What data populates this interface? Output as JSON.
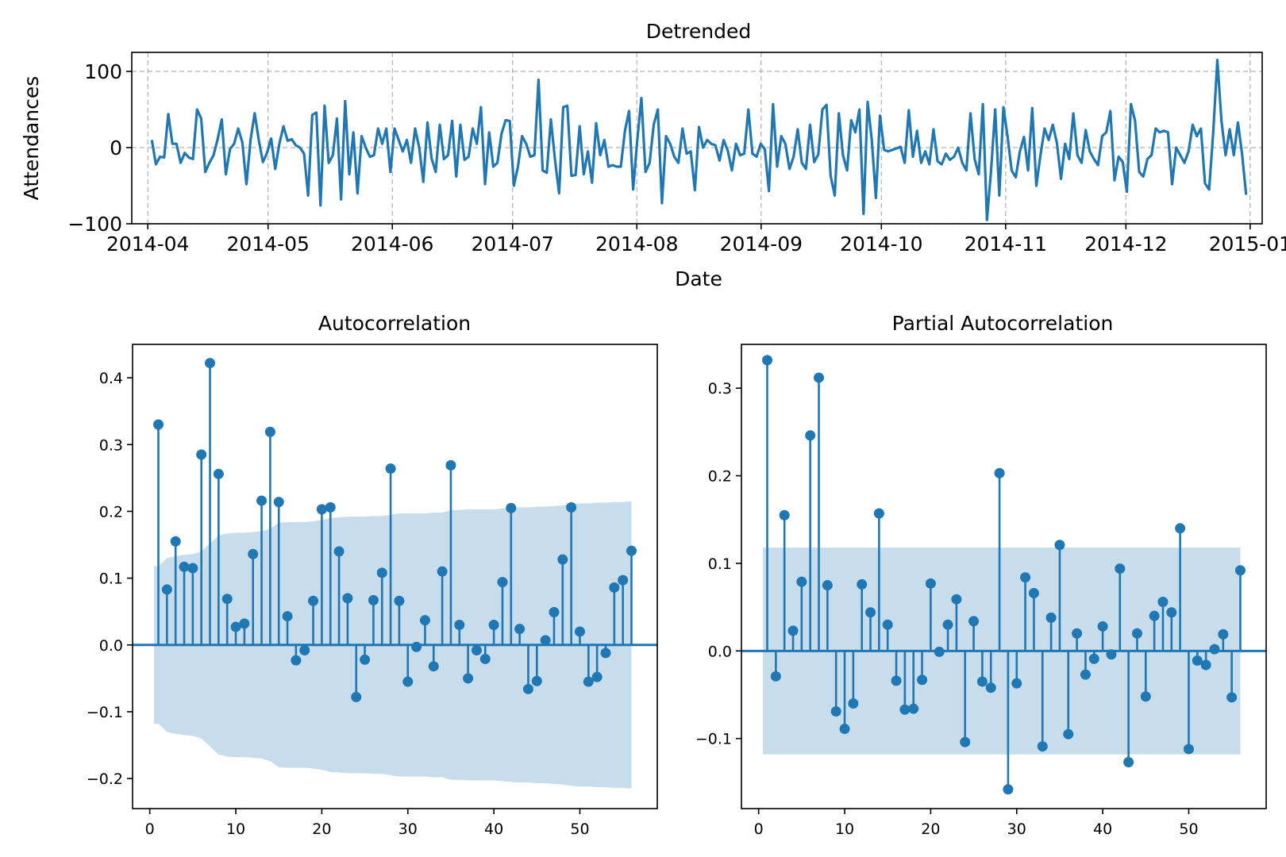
{
  "chart_data": [
    {
      "type": "line",
      "title": "Detrended",
      "xlabel": "Date",
      "ylabel": "Attendances",
      "xlim": [
        "2014-03-28",
        "2015-01-04"
      ],
      "ylim": [
        -100,
        125
      ],
      "yticks": [
        -100,
        0,
        100
      ],
      "ytick_labels": [
        "−100",
        "0",
        "100"
      ],
      "xticks": [
        "2014-04-01",
        "2014-05-01",
        "2014-06-01",
        "2014-07-01",
        "2014-08-01",
        "2014-09-01",
        "2014-10-01",
        "2014-11-01",
        "2014-12-01",
        "2015-01-01"
      ],
      "xtick_labels": [
        "2014-04",
        "2014-05",
        "2014-06",
        "2014-07",
        "2014-08",
        "2014-09",
        "2014-10",
        "2014-11",
        "2014-12",
        "2015-01"
      ],
      "grid": true,
      "color": "#1f77b4",
      "x_start": "2014-04-02",
      "x_end": "2014-12-31",
      "values": [
        10,
        -22,
        -12,
        -13,
        44,
        5,
        5,
        -20,
        -7,
        -13,
        -15,
        50,
        38,
        -32,
        -20,
        -10,
        11,
        37,
        -35,
        -2,
        5,
        25,
        7,
        -48,
        10,
        45,
        10,
        -19,
        -7,
        12,
        -28,
        5,
        28,
        9,
        11,
        3,
        0,
        -8,
        -63,
        43,
        46,
        -76,
        55,
        -20,
        -10,
        38,
        -68,
        61,
        -35,
        20,
        -60,
        15,
        0,
        -12,
        -10,
        25,
        5,
        25,
        -32,
        25,
        10,
        -5,
        10,
        -20,
        25,
        0,
        -45,
        33,
        -14,
        -32,
        30,
        -15,
        -10,
        35,
        -38,
        30,
        -16,
        -12,
        25,
        5,
        53,
        -48,
        20,
        -25,
        -20,
        18,
        36,
        35,
        -50,
        -25,
        15,
        5,
        -12,
        -10,
        89,
        -30,
        -33,
        37,
        -16,
        -60,
        53,
        55,
        -37,
        -36,
        28,
        -35,
        -5,
        -46,
        32,
        -10,
        10,
        -25,
        -23,
        -25,
        -25,
        22,
        48,
        -55,
        10,
        65,
        -32,
        -20,
        30,
        50,
        -73,
        15,
        5,
        -12,
        -20,
        25,
        -8,
        -5,
        -56,
        27,
        0,
        10,
        5,
        3,
        -17,
        10,
        -4,
        -30,
        5,
        -10,
        -8,
        50,
        -8,
        -12,
        5,
        -2,
        -57,
        57,
        -25,
        15,
        5,
        -28,
        -12,
        24,
        -20,
        -28,
        30,
        -19,
        -9,
        50,
        56,
        -37,
        -63,
        45,
        -10,
        -30,
        36,
        20,
        50,
        -87,
        60,
        10,
        -66,
        42,
        -3,
        -5,
        -3,
        -1,
        1,
        -20,
        49,
        -12,
        22,
        -20,
        -5,
        -22,
        24,
        -18,
        -22,
        -8,
        -16,
        -12,
        0,
        -20,
        -30,
        45,
        -15,
        -35,
        57,
        -95,
        -30,
        50,
        -63,
        53,
        15,
        -30,
        -39,
        -5,
        14,
        -30,
        52,
        -50,
        -10,
        25,
        10,
        30,
        6,
        -41,
        5,
        -15,
        45,
        -10,
        -20,
        23,
        -5,
        -15,
        -23,
        15,
        20,
        48,
        -43,
        -12,
        -19,
        -58,
        57,
        35,
        -32,
        -38,
        -15,
        -10,
        25,
        20,
        22,
        20,
        -48,
        0,
        -10,
        -20,
        -5,
        30,
        15,
        25,
        -47,
        -55,
        20,
        115,
        35,
        -10,
        24,
        -10,
        33,
        -8,
        -62
      ]
    },
    {
      "type": "stem",
      "title": "Autocorrelation",
      "xlim": [
        -2,
        59
      ],
      "ylim": [
        -0.245,
        0.45
      ],
      "xticks": [
        0,
        10,
        20,
        30,
        40,
        50
      ],
      "yticks": [
        -0.2,
        -0.1,
        0.0,
        0.1,
        0.2,
        0.3,
        0.4
      ],
      "ytick_labels": [
        "−0.2",
        "−0.1",
        "0.0",
        "0.1",
        "0.2",
        "0.3",
        "0.4"
      ],
      "color": "#1f77b4",
      "band_color": "#1f77b4",
      "lags": [
        1,
        2,
        3,
        4,
        5,
        6,
        7,
        8,
        9,
        10,
        11,
        12,
        13,
        14,
        15,
        16,
        17,
        18,
        19,
        20,
        21,
        22,
        23,
        24,
        25,
        26,
        27,
        28,
        29,
        30,
        31,
        32,
        33,
        34,
        35,
        36,
        37,
        38,
        39,
        40,
        41,
        42,
        43,
        44,
        45,
        46,
        47,
        48,
        49,
        50,
        51,
        52,
        53,
        54,
        55,
        56
      ],
      "values": [
        0.33,
        0.083,
        0.155,
        0.117,
        0.115,
        0.285,
        0.422,
        0.256,
        0.069,
        0.027,
        0.032,
        0.136,
        0.216,
        0.319,
        0.214,
        0.043,
        -0.023,
        -0.008,
        0.066,
        0.203,
        0.206,
        0.14,
        0.07,
        -0.078,
        -0.022,
        0.067,
        0.108,
        0.264,
        0.066,
        -0.055,
        -0.003,
        0.037,
        -0.032,
        0.11,
        0.269,
        0.03,
        -0.05,
        -0.008,
        -0.021,
        0.03,
        0.094,
        0.205,
        0.024,
        -0.066,
        -0.054,
        0.007,
        0.049,
        0.128,
        0.206,
        0.02,
        -0.055,
        -0.048,
        -0.012,
        0.086,
        0.097,
        0.141
      ],
      "confint": [
        0.118,
        0.13,
        0.133,
        0.135,
        0.136,
        0.14,
        0.152,
        0.164,
        0.167,
        0.168,
        0.168,
        0.169,
        0.17,
        0.174,
        0.183,
        0.184,
        0.184,
        0.184,
        0.185,
        0.187,
        0.19,
        0.191,
        0.192,
        0.192,
        0.192,
        0.193,
        0.193,
        0.195,
        0.197,
        0.197,
        0.197,
        0.197,
        0.198,
        0.198,
        0.202,
        0.202,
        0.203,
        0.203,
        0.203,
        0.203,
        0.204,
        0.205,
        0.206,
        0.206,
        0.207,
        0.207,
        0.208,
        0.209,
        0.211,
        0.212,
        0.212,
        0.213,
        0.213,
        0.214,
        0.214,
        0.215
      ]
    },
    {
      "type": "stem",
      "title": "Partial Autocorrelation",
      "xlim": [
        -2,
        59
      ],
      "ylim": [
        -0.18,
        0.35
      ],
      "xticks": [
        0,
        10,
        20,
        30,
        40,
        50
      ],
      "yticks": [
        -0.1,
        0.0,
        0.1,
        0.2,
        0.3
      ],
      "ytick_labels": [
        "−0.1",
        "0.0",
        "0.1",
        "0.2",
        "0.3"
      ],
      "color": "#1f77b4",
      "band_color": "#1f77b4",
      "lags": [
        1,
        2,
        3,
        4,
        5,
        6,
        7,
        8,
        9,
        10,
        11,
        12,
        13,
        14,
        15,
        16,
        17,
        18,
        19,
        20,
        21,
        22,
        23,
        24,
        25,
        26,
        27,
        28,
        29,
        30,
        31,
        32,
        33,
        34,
        35,
        36,
        37,
        38,
        39,
        40,
        41,
        42,
        43,
        44,
        45,
        46,
        47,
        48,
        49,
        50,
        51,
        52,
        53,
        54,
        55,
        56
      ],
      "values": [
        0.332,
        -0.029,
        0.155,
        0.023,
        0.079,
        0.246,
        0.312,
        0.075,
        -0.069,
        -0.089,
        -0.06,
        0.076,
        0.044,
        0.157,
        0.03,
        -0.034,
        -0.067,
        -0.066,
        -0.033,
        0.077,
        -0.001,
        0.03,
        0.059,
        -0.104,
        0.034,
        -0.035,
        -0.042,
        0.203,
        -0.158,
        -0.037,
        0.084,
        0.066,
        -0.109,
        0.038,
        0.121,
        -0.095,
        0.02,
        -0.027,
        -0.009,
        0.028,
        -0.004,
        0.094,
        -0.127,
        0.02,
        -0.052,
        0.04,
        0.056,
        0.044,
        0.14,
        -0.112,
        -0.011,
        -0.016,
        0.002,
        0.019,
        -0.053,
        0.092
      ],
      "confint": 0.118
    }
  ]
}
